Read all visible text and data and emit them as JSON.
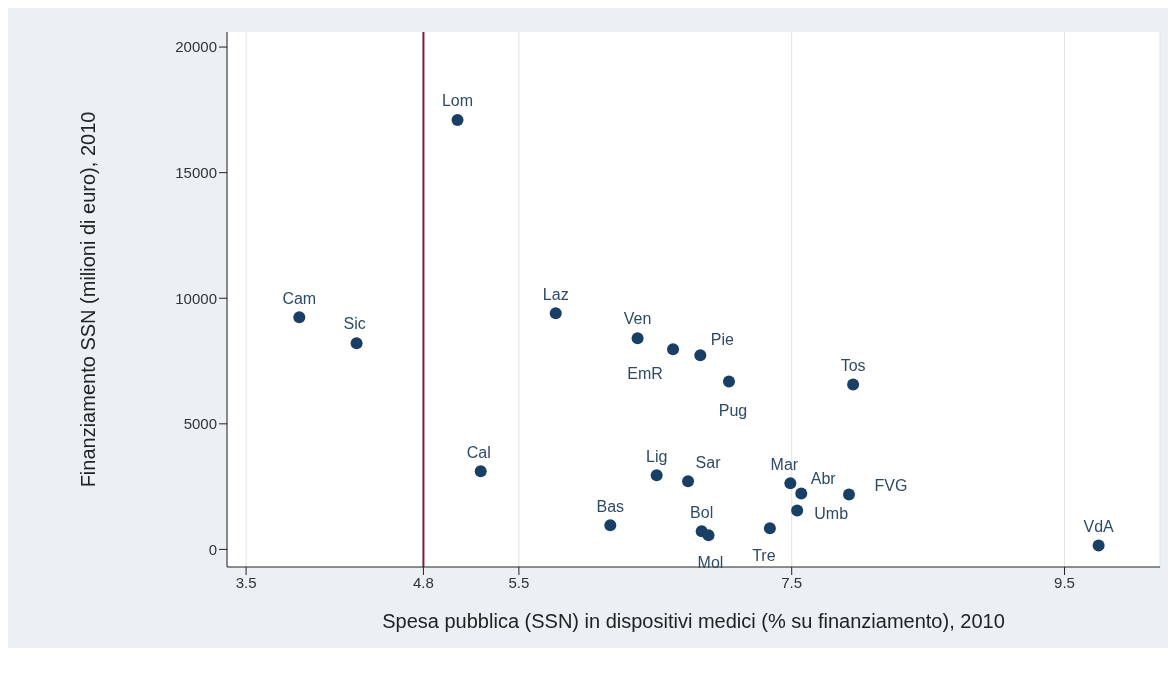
{
  "chart_data": {
    "type": "scatter",
    "xlabel": "Spesa pubblica (SSN) in dispositivi medici (% su finanziamento), 2010",
    "ylabel": "Finanziamento SSN (milioni di euro), 2010",
    "x": [
      5.05,
      3.89,
      4.31,
      5.77,
      6.37,
      6.63,
      6.83,
      7.04,
      7.95,
      5.22,
      6.51,
      6.74,
      7.49,
      7.57,
      7.92,
      7.54,
      6.17,
      6.84,
      6.89,
      7.34,
      9.75
    ],
    "series": [
      {
        "color": "#1a3f66",
        "values": [
          17100,
          9240,
          8210,
          9400,
          8410,
          7970,
          7730,
          6690,
          6570,
          3110,
          2950,
          2710,
          2630,
          2230,
          2190,
          1550,
          960,
          720,
          560,
          840,
          160
        ]
      }
    ],
    "annotations": [
      {
        "text": "Lom",
        "x": 5.05,
        "y": 17100
      },
      {
        "text": "Cam",
        "x": 3.89,
        "y": 9240
      },
      {
        "text": "Sic",
        "x": 4.31,
        "y": 8210
      },
      {
        "text": "Laz",
        "x": 5.77,
        "y": 9400
      },
      {
        "text": "Ven",
        "x": 6.37,
        "y": 8410
      },
      {
        "text": "EmR",
        "x": 6.63,
        "y": 7970
      },
      {
        "text": "Pie",
        "x": 6.83,
        "y": 7730
      },
      {
        "text": "Pug",
        "x": 7.04,
        "y": 6690
      },
      {
        "text": "Tos",
        "x": 7.95,
        "y": 6570
      },
      {
        "text": "Cal",
        "x": 5.22,
        "y": 3110
      },
      {
        "text": "Lig",
        "x": 6.51,
        "y": 2950
      },
      {
        "text": "Sar",
        "x": 6.74,
        "y": 2710
      },
      {
        "text": "Mar",
        "x": 7.49,
        "y": 2630
      },
      {
        "text": "Abr",
        "x": 7.57,
        "y": 2230
      },
      {
        "text": "FVG",
        "x": 7.92,
        "y": 2190
      },
      {
        "text": "Umb",
        "x": 7.54,
        "y": 1550
      },
      {
        "text": "Bas",
        "x": 6.17,
        "y": 960
      },
      {
        "text": "Bol",
        "x": 6.84,
        "y": 720
      },
      {
        "text": "Mol",
        "x": 6.89,
        "y": 560
      },
      {
        "text": "Tre",
        "x": 7.34,
        "y": 840
      },
      {
        "text": "VdA",
        "x": 9.75,
        "y": 160
      }
    ],
    "xlim": [
      3.36,
      10.2
    ],
    "xticks": [
      3.5,
      4.8,
      5.5,
      7.5,
      9.5
    ],
    "ylim": [
      -700,
      20600
    ],
    "yticks": [
      0,
      5000,
      10000,
      15000,
      20000
    ],
    "ref_lines": [
      {
        "axis": "x",
        "value": 4.8,
        "color": "#8b1a3a"
      }
    ],
    "grid": "x",
    "marker": "circle"
  }
}
